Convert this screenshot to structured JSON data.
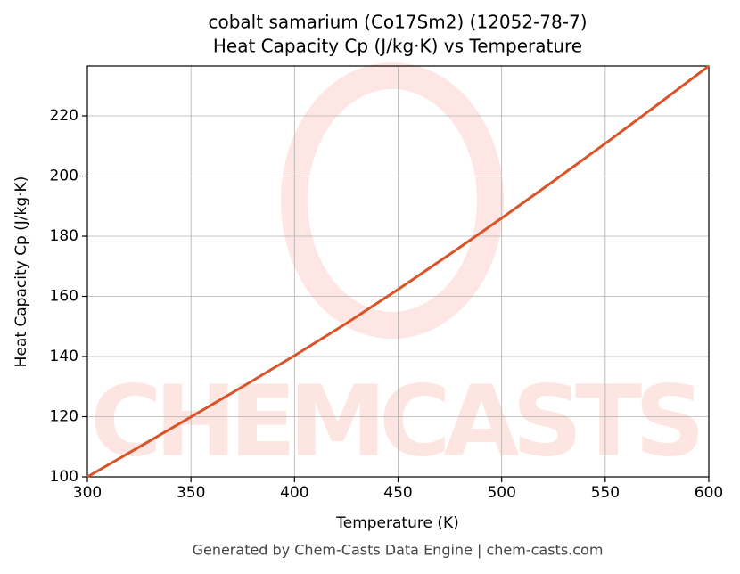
{
  "chart_data": {
    "type": "line",
    "title": "cobalt samarium (Co17Sm2) (12052-78-7)",
    "subtitle": "Heat Capacity Cp (J/kg·K) vs Temperature",
    "x_label": "Temperature (K)",
    "y_label": "Heat Capacity Cp (J/kg·K)",
    "footer": "Generated by Chem-Casts Data Engine | chem-casts.com",
    "x": [
      300,
      325,
      350,
      375,
      400,
      425,
      450,
      475,
      500,
      525,
      550,
      575,
      600
    ],
    "series": [
      {
        "name": "Heat Capacity Cp",
        "color": "#d95428",
        "values": [
          100,
          109.9,
          119.9,
          130.0,
          140.3,
          151.0,
          162.3,
          174.0,
          186.0,
          198.3,
          210.8,
          223.6,
          236.6
        ]
      }
    ],
    "xlim": [
      300,
      600
    ],
    "ylim": [
      100,
      236.6
    ],
    "xticks": [
      300,
      350,
      400,
      450,
      500,
      550,
      600
    ],
    "yticks": [
      100,
      120,
      140,
      160,
      180,
      200,
      220
    ],
    "grid": true
  }
}
